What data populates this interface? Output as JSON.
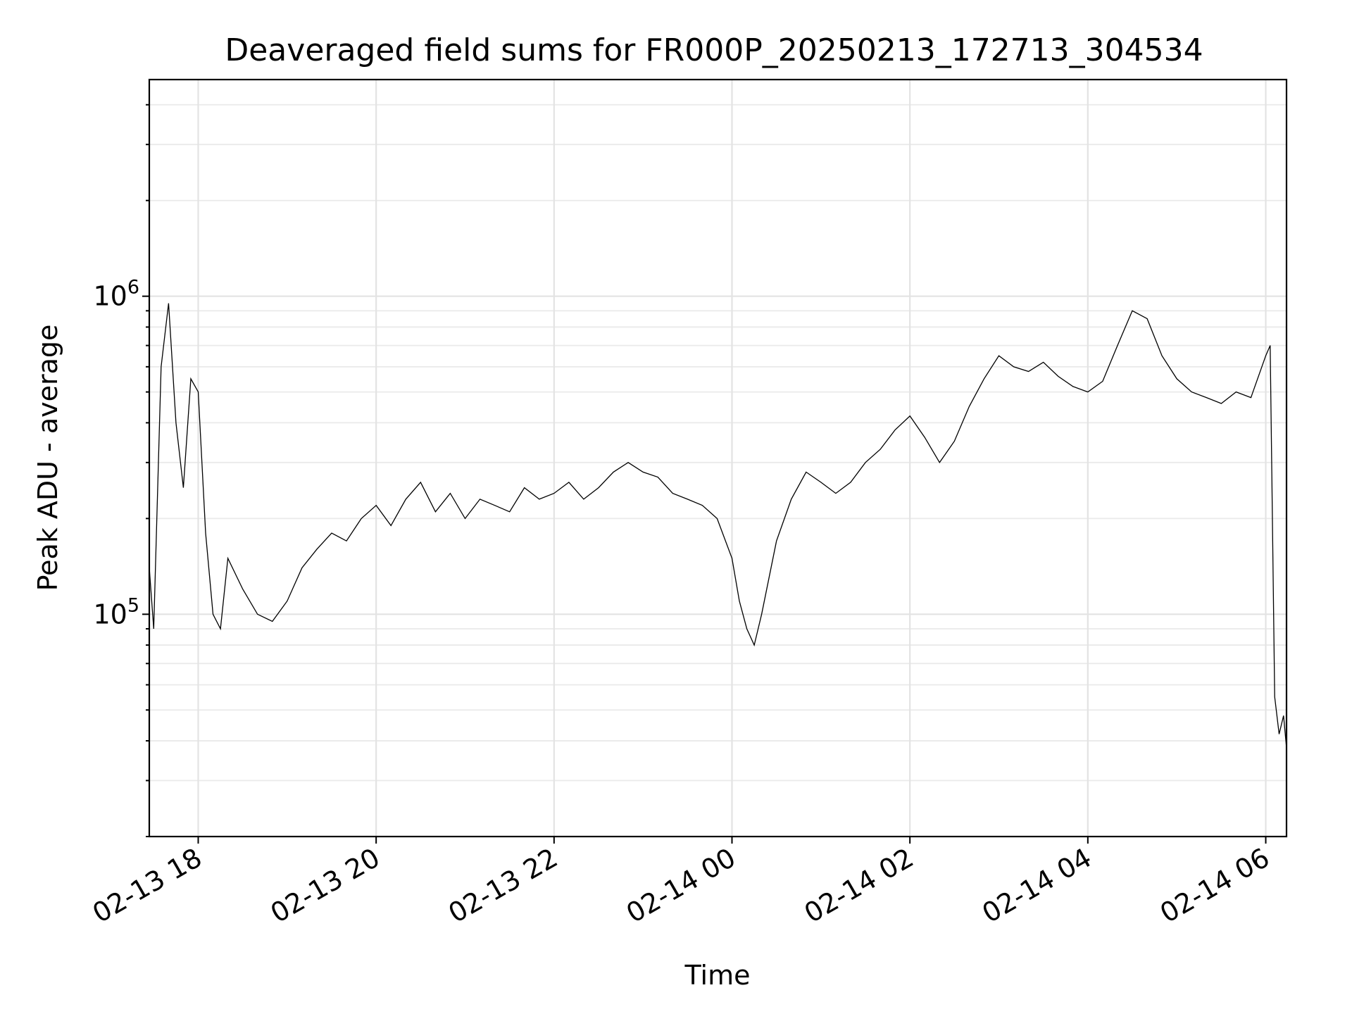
{
  "chart_data": {
    "type": "line",
    "title": "Deaveraged field sums for FR000P_20250213_172713_304534",
    "xlabel": "Time",
    "ylabel": "Peak ADU - average",
    "yscale": "log",
    "grid": true,
    "line_color": "#000000",
    "x_range": [
      "02-13 17:27",
      "02-14 06:14"
    ],
    "ylim": [
      20000,
      4800000
    ],
    "x_ticks": [
      {
        "value": "02-13 18:00",
        "label": "02-13 18"
      },
      {
        "value": "02-13 20:00",
        "label": "02-13 20"
      },
      {
        "value": "02-13 22:00",
        "label": "02-13 22"
      },
      {
        "value": "02-14 00:00",
        "label": "02-14 00"
      },
      {
        "value": "02-14 02:00",
        "label": "02-14 02"
      },
      {
        "value": "02-14 04:00",
        "label": "02-14 04"
      },
      {
        "value": "02-14 06:00",
        "label": "02-14 06"
      }
    ],
    "y_ticks": [
      {
        "value": 100000,
        "base": "10",
        "exp": "5"
      },
      {
        "value": 1000000,
        "base": "10",
        "exp": "6"
      }
    ],
    "series": [
      {
        "x": [
          "02-13 17:27",
          "02-13 17:30",
          "02-13 17:35",
          "02-13 17:40",
          "02-13 17:45",
          "02-13 17:50",
          "02-13 17:55",
          "02-13 18:00",
          "02-13 18:05",
          "02-13 18:10",
          "02-13 18:15",
          "02-13 18:20",
          "02-13 18:30",
          "02-13 18:40",
          "02-13 18:50",
          "02-13 19:00",
          "02-13 19:10",
          "02-13 19:20",
          "02-13 19:30",
          "02-13 19:40",
          "02-13 19:50",
          "02-13 20:00",
          "02-13 20:10",
          "02-13 20:20",
          "02-13 20:30",
          "02-13 20:40",
          "02-13 20:50",
          "02-13 21:00",
          "02-13 21:10",
          "02-13 21:20",
          "02-13 21:30",
          "02-13 21:40",
          "02-13 21:50",
          "02-13 22:00",
          "02-13 22:10",
          "02-13 22:20",
          "02-13 22:30",
          "02-13 22:40",
          "02-13 22:50",
          "02-13 23:00",
          "02-13 23:10",
          "02-13 23:20",
          "02-13 23:30",
          "02-13 23:40",
          "02-13 23:50",
          "02-14 00:00",
          "02-14 00:05",
          "02-14 00:10",
          "02-14 00:15",
          "02-14 00:20",
          "02-14 00:30",
          "02-14 00:40",
          "02-14 00:50",
          "02-14 01:00",
          "02-14 01:10",
          "02-14 01:20",
          "02-14 01:30",
          "02-14 01:40",
          "02-14 01:50",
          "02-14 02:00",
          "02-14 02:10",
          "02-14 02:20",
          "02-14 02:30",
          "02-14 02:40",
          "02-14 02:50",
          "02-14 03:00",
          "02-14 03:10",
          "02-14 03:20",
          "02-14 03:30",
          "02-14 03:40",
          "02-14 03:50",
          "02-14 04:00",
          "02-14 04:10",
          "02-14 04:20",
          "02-14 04:30",
          "02-14 04:40",
          "02-14 04:50",
          "02-14 05:00",
          "02-14 05:10",
          "02-14 05:20",
          "02-14 05:30",
          "02-14 05:40",
          "02-14 05:50",
          "02-14 06:00",
          "02-14 06:03",
          "02-14 06:06",
          "02-14 06:09",
          "02-14 06:12",
          "02-14 06:14"
        ],
        "y": [
          140000,
          90000,
          600000,
          950000,
          400000,
          250000,
          550000,
          500000,
          180000,
          100000,
          90000,
          150000,
          120000,
          100000,
          95000,
          110000,
          140000,
          160000,
          180000,
          170000,
          200000,
          220000,
          190000,
          230000,
          260000,
          210000,
          240000,
          200000,
          230000,
          220000,
          210000,
          250000,
          230000,
          240000,
          260000,
          230000,
          250000,
          280000,
          300000,
          280000,
          270000,
          240000,
          230000,
          220000,
          200000,
          150000,
          110000,
          90000,
          80000,
          100000,
          170000,
          230000,
          280000,
          260000,
          240000,
          260000,
          300000,
          330000,
          380000,
          420000,
          360000,
          300000,
          350000,
          450000,
          550000,
          650000,
          600000,
          580000,
          620000,
          560000,
          520000,
          500000,
          540000,
          700000,
          900000,
          850000,
          650000,
          550000,
          500000,
          480000,
          460000,
          500000,
          480000,
          650000,
          700000,
          55000,
          42000,
          48000,
          38000
        ]
      }
    ]
  }
}
